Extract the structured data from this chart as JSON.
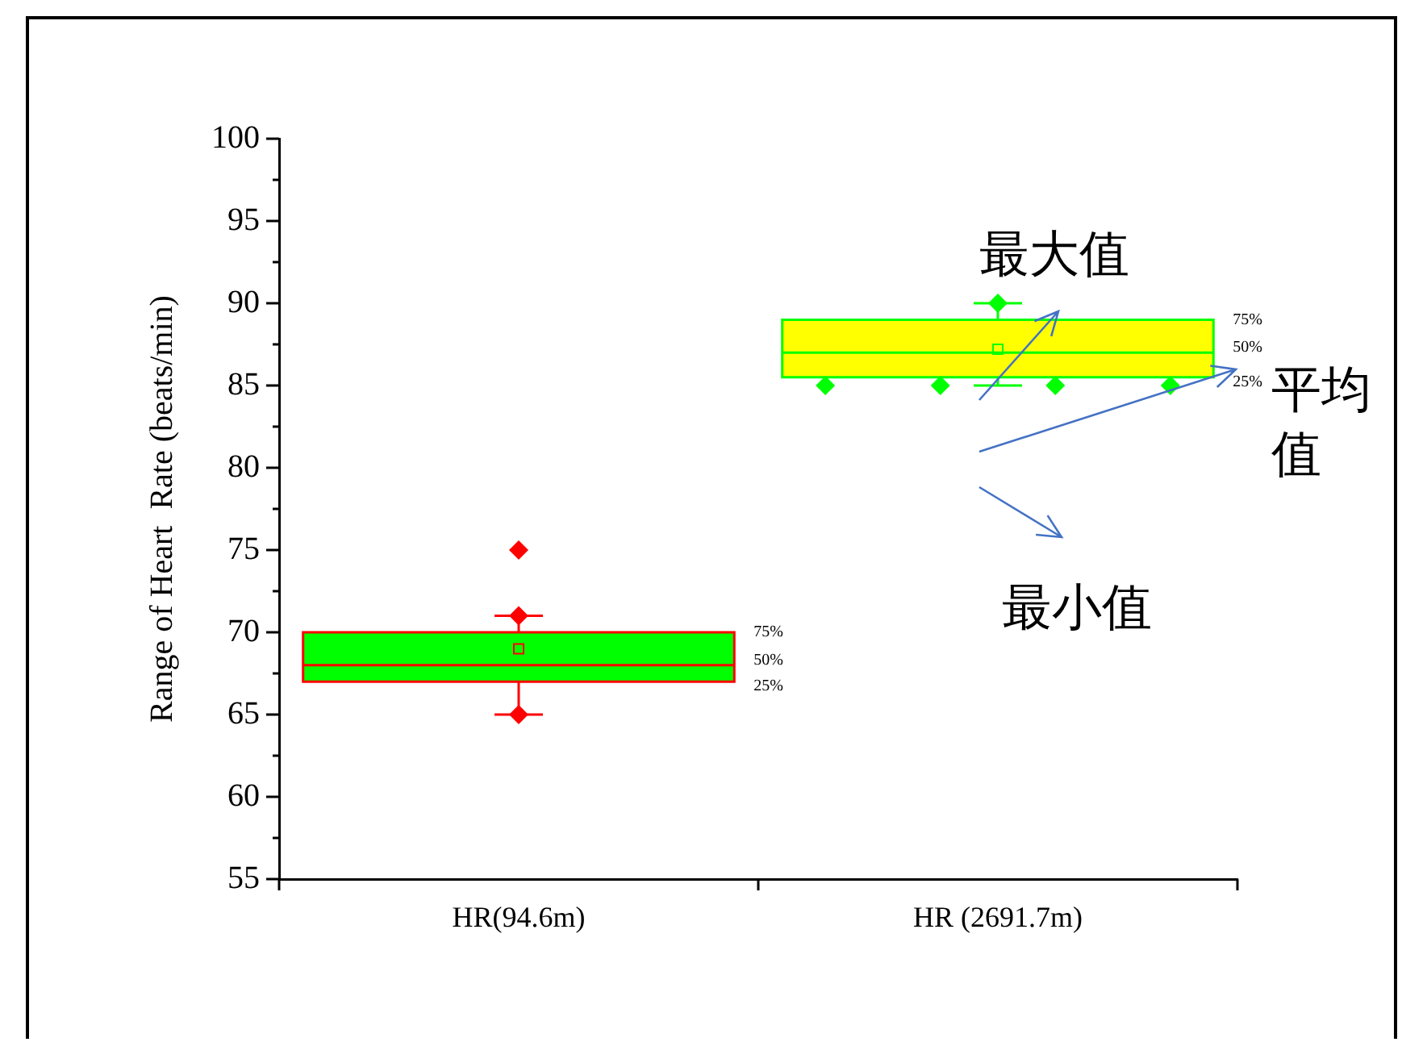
{
  "chart_data": {
    "type": "box",
    "ylabel": "Range of Heart  Rate (beats/min)",
    "categories": [
      "HR(94.6m)",
      "HR (2691.7m)"
    ],
    "boxes": [
      {
        "low": 65,
        "q1": 67,
        "median": 68,
        "q3": 70,
        "high": 71,
        "mean": 69,
        "outliers": [
          75
        ]
      },
      {
        "low": 85,
        "q1": 85.5,
        "median": 87,
        "q3": 89,
        "high": 90,
        "mean": 87.2,
        "outliers": [
          85,
          85,
          85,
          85
        ]
      }
    ],
    "colors": [
      "#00ff00",
      "#ffff00"
    ],
    "series": [
      {
        "type": "scatter",
        "x": [
          "HR(94.6m)",
          "HR (2691.7m)",
          "HR(94.6m)"
        ],
        "values": [
          71,
          90,
          65
        ],
        "colors": [
          "#ff0000",
          "#00ff00",
          "#ff0000"
        ]
      }
    ],
    "ylim": [
      55,
      100
    ],
    "yticks": [
      55,
      60,
      65,
      70,
      75,
      80,
      85,
      90,
      95,
      100
    ],
    "grid": false,
    "legend": false,
    "marker": "diamond",
    "annotations": [
      "75%",
      "50%",
      "25%",
      "75%",
      "50%",
      "25%",
      "最大值",
      "平均值",
      "最小值"
    ]
  }
}
